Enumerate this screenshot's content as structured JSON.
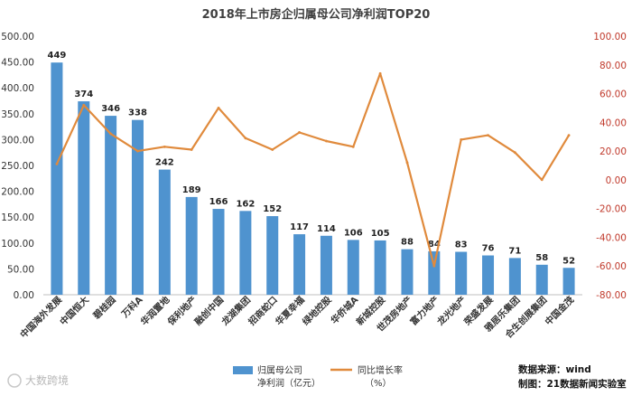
{
  "chart_data": {
    "type": "bar+line",
    "title": "2018年上市房企归属母公司净利润TOP20",
    "categories": [
      "中国海外发展",
      "中国恒大",
      "碧桂园",
      "万科A",
      "华润置地",
      "保利地产",
      "融创中国",
      "龙湖集团",
      "招商蛇口",
      "华夏幸福",
      "绿地控股",
      "华侨城A",
      "新城控股",
      "世茂房地产",
      "富力地产",
      "龙光地产",
      "荣盛发展",
      "雅居乐集团",
      "合生创展集团",
      "中国金茂"
    ],
    "series": [
      {
        "name": "归属母公司净利润（亿元）",
        "type": "bar",
        "axis": "left",
        "color": "#4f93cf",
        "values": [
          449,
          374,
          346,
          338,
          242,
          189,
          166,
          162,
          152,
          117,
          114,
          106,
          105,
          88,
          84,
          83,
          76,
          71,
          58,
          52
        ]
      },
      {
        "name": "同比增长率（%）",
        "type": "line",
        "axis": "right",
        "color": "#e08a3c",
        "values": [
          11,
          52,
          32,
          20,
          23,
          21,
          50,
          29,
          21,
          33,
          27,
          23,
          74,
          12,
          -60,
          28,
          31,
          19,
          0,
          31
        ]
      }
    ],
    "ylim_left": [
      0,
      500
    ],
    "yticks_left": [
      "0.00",
      "50.00",
      "100.00",
      "150.00",
      "200.00",
      "250.00",
      "300.00",
      "350.00",
      "400.00",
      "450.00",
      "500.00"
    ],
    "ylim_right": [
      -80,
      100
    ],
    "yticks_right": [
      "-80.00",
      "-60.00",
      "-40.00",
      "-20.00",
      "0.00",
      "20.00",
      "40.00",
      "60.00",
      "80.00",
      "100.00"
    ],
    "grid": false,
    "legend_position": "bottom-center",
    "legend": {
      "bar_label_line1": "归属母公司",
      "bar_label_line2": "净利润（亿元）",
      "line_label_line1": "同比增长率",
      "line_label_line2": "（%）"
    },
    "source_note": {
      "line1": "数据来源：wind",
      "line2": "制图：21数据新闻实验室"
    },
    "watermark": "大数跨境"
  }
}
